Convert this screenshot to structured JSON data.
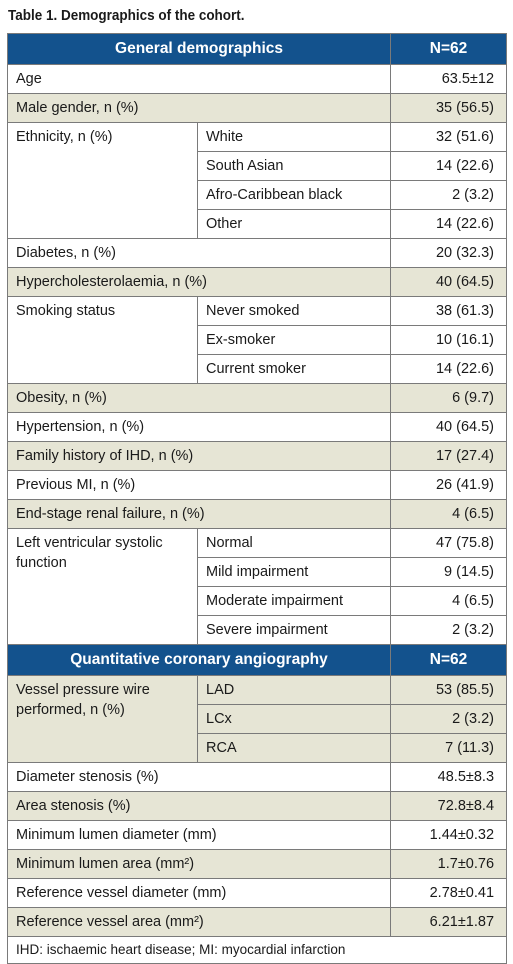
{
  "caption": "Table 1. Demographics of the cohort.",
  "section1": {
    "title": "General demographics",
    "n": "N=62"
  },
  "rows1": [
    {
      "label": "Age",
      "value": "63.5±12"
    },
    {
      "label": "Male gender, n (%)",
      "value": "35 (56.5)"
    },
    {
      "label": "Ethnicity, n (%)",
      "sub": [
        {
          "label": "White",
          "value": "32 (51.6)"
        },
        {
          "label": "South Asian",
          "value": "14 (22.6)"
        },
        {
          "label": "Afro-Caribbean black",
          "value": "2 (3.2)"
        },
        {
          "label": "Other",
          "value": "14 (22.6)"
        }
      ]
    },
    {
      "label": "Diabetes, n (%)",
      "value": "20 (32.3)"
    },
    {
      "label": "Hypercholesterolaemia, n (%)",
      "value": "40 (64.5)"
    },
    {
      "label": "Smoking status",
      "sub": [
        {
          "label": "Never smoked",
          "value": "38 (61.3)"
        },
        {
          "label": "Ex-smoker",
          "value": "10 (16.1)"
        },
        {
          "label": "Current smoker",
          "value": "14 (22.6)"
        }
      ]
    },
    {
      "label": "Obesity, n (%)",
      "value": "6 (9.7)"
    },
    {
      "label": "Hypertension, n (%)",
      "value": "40 (64.5)"
    },
    {
      "label": "Family history of IHD, n (%)",
      "value": "17 (27.4)"
    },
    {
      "label": "Previous MI, n (%)",
      "value": "26 (41.9)"
    },
    {
      "label": "End-stage renal failure, n (%)",
      "value": "4 (6.5)"
    },
    {
      "label": "Left ventricular systolic function",
      "sub": [
        {
          "label": "Normal",
          "value": "47 (75.8)"
        },
        {
          "label": "Mild impairment",
          "value": "9 (14.5)"
        },
        {
          "label": "Moderate impairment",
          "value": "4 (6.5)"
        },
        {
          "label": "Severe impairment",
          "value": "2 (3.2)"
        }
      ]
    }
  ],
  "section2": {
    "title": "Quantitative coronary angiography",
    "n": "N=62"
  },
  "rows2": [
    {
      "label": "Vessel pressure wire performed, n (%)",
      "sub": [
        {
          "label": "LAD",
          "value": "53 (85.5)"
        },
        {
          "label": "LCx",
          "value": "2 (3.2)"
        },
        {
          "label": "RCA",
          "value": "7 (11.3)"
        }
      ]
    },
    {
      "label": "Diameter stenosis (%)",
      "value": "48.5±8.3"
    },
    {
      "label": "Area stenosis (%)",
      "value": "72.8±8.4"
    },
    {
      "label": "Minimum lumen diameter (mm)",
      "value": "1.44±0.32"
    },
    {
      "label": "Minimum lumen area (mm²)",
      "value": "1.7±0.76"
    },
    {
      "label": "Reference vessel diameter (mm)",
      "value": "2.78±0.41"
    },
    {
      "label": "Reference vessel area (mm²)",
      "value": "6.21±1.87"
    }
  ],
  "footnote": "IHD: ischaemic heart disease; MI: myocardial infarction"
}
